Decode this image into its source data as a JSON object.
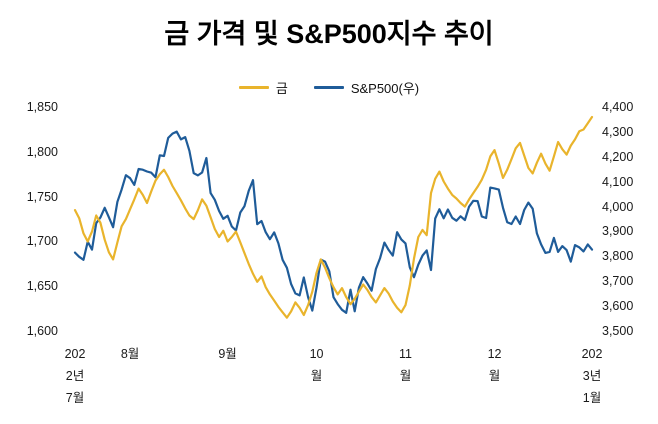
{
  "page": {
    "background": "#FFFFFF"
  },
  "chart_data": {
    "type": "line",
    "title": "금 가격 및 S&P500지수 추이",
    "legend_position": "top",
    "grid": false,
    "x_axis": {
      "period": "2022년 7월 ~ 2023년 1월",
      "ticks": [
        {
          "lines": [
            "202",
            "2년",
            "7월"
          ],
          "index": 0
        },
        {
          "lines": [
            "8월"
          ],
          "index": 13
        },
        {
          "lines": [
            "9월"
          ],
          "index": 36
        },
        {
          "lines": [
            "10",
            "월"
          ],
          "index": 57
        },
        {
          "lines": [
            "11",
            "월"
          ],
          "index": 78
        },
        {
          "lines": [
            "12",
            "월"
          ],
          "index": 99
        },
        {
          "lines": [
            "202",
            "3년",
            "1월"
          ],
          "index": 122
        }
      ]
    },
    "left_axis": {
      "min": 1600,
      "max": 1850,
      "tick_values": [
        1850,
        1800,
        1750,
        1700,
        1650,
        1600
      ],
      "tick_labels": [
        "1,850",
        "1,800",
        "1,750",
        "1,700",
        "1,650",
        "1,600"
      ]
    },
    "right_axis": {
      "min": 3500,
      "max": 4400,
      "tick_values": [
        4400,
        4300,
        4200,
        4100,
        4000,
        3900,
        3800,
        3700,
        3600,
        3500
      ],
      "tick_labels": [
        "4,400",
        "4,300",
        "4,200",
        "4,100",
        "4,000",
        "3,900",
        "3,800",
        "3,700",
        "3,600",
        "3,500"
      ]
    },
    "series": [
      {
        "name": "금",
        "axis": "left",
        "color": "#E9B42C",
        "values": [
          1736,
          1727,
          1710,
          1701,
          1712,
          1730,
          1722,
          1703,
          1689,
          1681,
          1700,
          1718,
          1726,
          1737,
          1748,
          1760,
          1753,
          1744,
          1757,
          1769,
          1776,
          1781,
          1773,
          1763,
          1755,
          1747,
          1738,
          1730,
          1726,
          1736,
          1748,
          1741,
          1728,
          1715,
          1706,
          1713,
          1701,
          1706,
          1712,
          1700,
          1688,
          1676,
          1665,
          1656,
          1662,
          1650,
          1642,
          1635,
          1628,
          1622,
          1616,
          1623,
          1633,
          1627,
          1619,
          1630,
          1645,
          1666,
          1681,
          1672,
          1660,
          1650,
          1642,
          1649,
          1639,
          1631,
          1637,
          1645,
          1653,
          1647,
          1639,
          1633,
          1641,
          1649,
          1643,
          1634,
          1627,
          1622,
          1630,
          1652,
          1682,
          1706,
          1714,
          1708,
          1755,
          1771,
          1779,
          1768,
          1760,
          1753,
          1749,
          1744,
          1740,
          1748,
          1755,
          1762,
          1770,
          1781,
          1796,
          1803,
          1788,
          1772,
          1781,
          1793,
          1805,
          1811,
          1797,
          1783,
          1777,
          1789,
          1799,
          1788,
          1780,
          1796,
          1812,
          1804,
          1798,
          1808,
          1815,
          1824,
          1826,
          1833,
          1840
        ]
      },
      {
        "name": "S&P500(우)",
        "axis": "right",
        "color": "#1F5C99",
        "values": [
          3819,
          3802,
          3790,
          3863,
          3831,
          3937,
          3960,
          3999,
          3961,
          3921,
          4023,
          4072,
          4130,
          4118,
          4091,
          4155,
          4152,
          4145,
          4140,
          4122,
          4210,
          4207,
          4280,
          4297,
          4305,
          4274,
          4283,
          4228,
          4138,
          4129,
          4141,
          4199,
          4058,
          4031,
          3986,
          3955,
          3967,
          3924,
          3908,
          3980,
          4006,
          4067,
          4110,
          3933,
          3946,
          3901,
          3873,
          3900,
          3856,
          3790,
          3758,
          3693,
          3655,
          3647,
          3719,
          3640,
          3586,
          3678,
          3791,
          3783,
          3744,
          3640,
          3612,
          3589,
          3577,
          3670,
          3583,
          3678,
          3720,
          3695,
          3666,
          3753,
          3797,
          3859,
          3830,
          3807,
          3901,
          3872,
          3856,
          3760,
          3720,
          3771,
          3807,
          3828,
          3749,
          3956,
          3993,
          3957,
          3992,
          3959,
          3947,
          3965,
          3950,
          4004,
          4027,
          4026,
          3964,
          3958,
          4080,
          4077,
          4072,
          3999,
          3941,
          3934,
          3964,
          3934,
          3990,
          4020,
          3995,
          3896,
          3852,
          3818,
          3822,
          3878,
          3822,
          3845,
          3829,
          3783,
          3849,
          3840,
          3824,
          3852,
          3831
        ]
      }
    ]
  }
}
